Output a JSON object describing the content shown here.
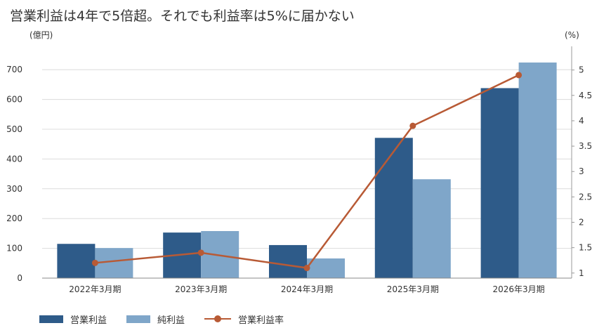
{
  "chart_data": {
    "type": "bar",
    "title": "営業利益は4年で5倍超。それでも利益率は5%に届かない",
    "y_left_label": "(億円)",
    "y_right_label": "(%)",
    "categories": [
      "2022年3月期",
      "2023年3月期",
      "2024年3月期",
      "2025年3月期",
      "2026年3月期"
    ],
    "y_left_range": [
      0,
      750
    ],
    "y_left_ticks": [
      "0",
      "100",
      "200",
      "300",
      "400",
      "500",
      "600",
      "700"
    ],
    "y_right_range": [
      0.9,
      5.3
    ],
    "y_right_ticks": [
      "1",
      "1.5",
      "2",
      "2.5",
      "3",
      "3.5",
      "4",
      "4.5",
      "5"
    ],
    "grid": true,
    "legend_position": "bottom-left",
    "series": [
      {
        "name": "営業利益",
        "kind": "bar",
        "axis": "left",
        "color": "#2e5b89",
        "values": [
          115,
          153,
          111,
          471,
          638
        ]
      },
      {
        "name": "純利益",
        "kind": "bar",
        "axis": "left",
        "color": "#7fa6c9",
        "values": [
          101,
          158,
          66,
          332,
          724
        ]
      },
      {
        "name": "営業利益率",
        "kind": "line",
        "axis": "right",
        "color": "#b85a35",
        "values": [
          1.2,
          1.4,
          1.1,
          3.9,
          4.9
        ]
      }
    ]
  }
}
